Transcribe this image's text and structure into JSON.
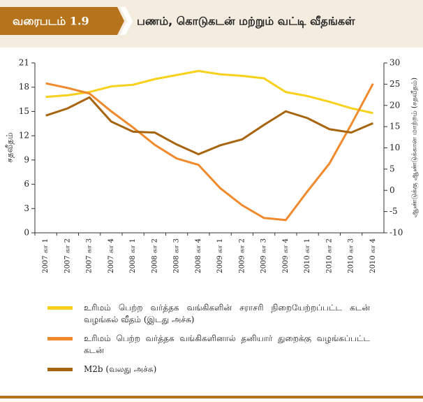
{
  "header": {
    "label": "வரைபடம் 1.9",
    "title": "பணம், கொடுகடன் மற்றும் வட்டி வீதங்கள்"
  },
  "chart_data": {
    "type": "line",
    "ylabel": "சதவீதம்",
    "y2label": "ஆண்டுக்கு ஆண்டுக்கான மாற்றம் (சதவீதம்)",
    "categories": [
      "2007 கா 1",
      "2007 கா 2",
      "2007 கா 3",
      "2007 கா 4",
      "2008 கா 1",
      "2008 கா 2",
      "2008 கா 3",
      "2008 கா 4",
      "2009 கா 1",
      "2009 கா 2",
      "2009 கா 3",
      "2009 கா 4",
      "2010 கா 1",
      "2010 கா 2",
      "2010 கா 3",
      "2010 கா 4"
    ],
    "ylim": [
      0,
      21
    ],
    "yticks": [
      0,
      3,
      6,
      9,
      12,
      15,
      18,
      21
    ],
    "y2lim": [
      -10,
      30
    ],
    "y2ticks": [
      -10,
      -5,
      0,
      5,
      10,
      15,
      20,
      25,
      30
    ],
    "series": [
      {
        "name": "உரிமம் பெற்ற வர்த்தக வங்கிகளின் சராசரி நிறையேற்றப்பட்ட கடன் வழங்கல் வீதம் (இடது அச்சு)",
        "color": "#f7d11b",
        "axis": "y",
        "values": [
          16.8,
          17.0,
          17.4,
          18.1,
          18.3,
          19.0,
          19.5,
          20.0,
          19.6,
          19.4,
          19.1,
          17.4,
          16.9,
          16.2,
          15.4,
          14.8
        ]
      },
      {
        "name": "உரிமம் பெற்ற வர்த்தக வங்கிகளினால் தனியார் துறைக்கு வழங்கப்பட்ட கடன்",
        "color": "#f08a2c",
        "axis": "y2",
        "values": [
          25.2,
          24.1,
          22.8,
          18.6,
          14.8,
          10.7,
          7.5,
          6.0,
          0.5,
          -3.5,
          -6.5,
          -7.0,
          -0.2,
          6.3,
          15.5,
          25.1
        ]
      },
      {
        "name": "M2b (வலது அச்சு)",
        "color": "#a8650f",
        "axis": "y2",
        "values": [
          17.6,
          19.3,
          21.9,
          16.2,
          13.8,
          13.6,
          10.8,
          8.5,
          10.6,
          12.0,
          15.4,
          18.6,
          17.0,
          14.4,
          13.6,
          15.8
        ]
      }
    ]
  }
}
